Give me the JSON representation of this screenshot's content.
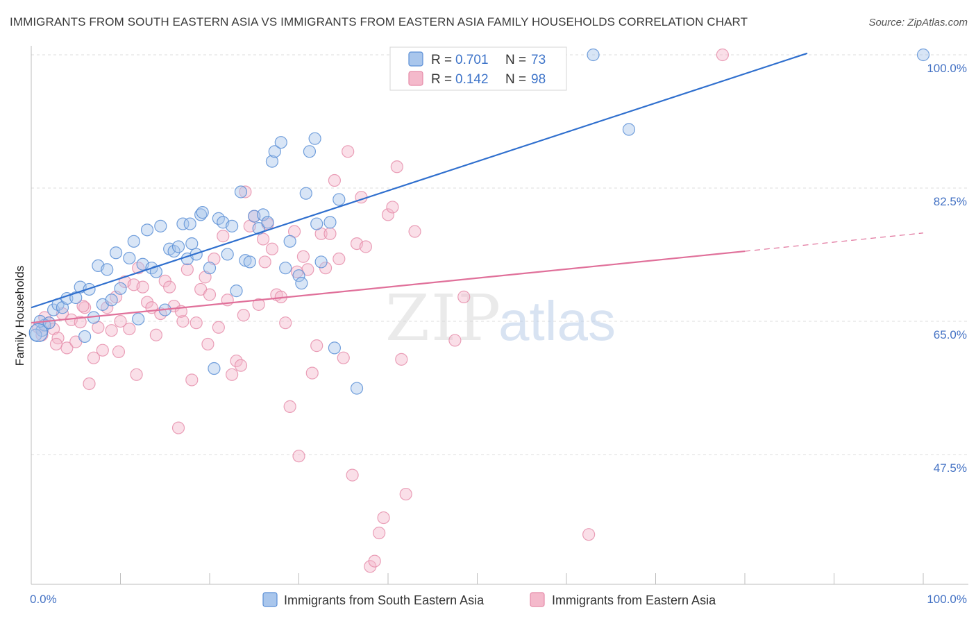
{
  "header": {
    "title": "IMMIGRANTS FROM SOUTH EASTERN ASIA VS IMMIGRANTS FROM EASTERN ASIA FAMILY HOUSEHOLDS CORRELATION CHART",
    "source": "Source: ZipAtlas.com"
  },
  "watermark": {
    "zip": "ZIP",
    "atlas": "atlas"
  },
  "colors": {
    "blue_fill": "#a9c6ec",
    "blue_stroke": "#5b8fd6",
    "blue_line": "#2f6fce",
    "pink_fill": "#f4b9cb",
    "pink_stroke": "#e58aa8",
    "pink_line": "#e0709a",
    "grid": "#dcdcdc",
    "tick_text": "#4472c4"
  },
  "legend": {
    "r_label": "R =",
    "n_label": "N =",
    "items": [
      {
        "r": "0.701",
        "n": "73"
      },
      {
        "r": "0.142",
        "n": "98"
      }
    ]
  },
  "chart_data": {
    "type": "scatter",
    "title": "IMMIGRANTS FROM SOUTH EASTERN ASIA VS IMMIGRANTS FROM EASTERN ASIA FAMILY HOUSEHOLDS CORRELATION CHART",
    "xlabel": "",
    "ylabel": "Family Households",
    "xlim": [
      0,
      100
    ],
    "ylim": [
      33,
      101
    ],
    "x_tick_labels": [
      "0.0%",
      "100.0%"
    ],
    "y_ticks": [
      47.5,
      65.0,
      82.5,
      100.0
    ],
    "y_tick_labels": [
      "47.5%",
      "65.0%",
      "82.5%",
      "100.0%"
    ],
    "grid": true,
    "legend_placement": "top-center",
    "series": [
      {
        "name": "Immigrants from South Eastern Asia",
        "color": "#5b8fd6",
        "trend": {
          "x0": 0,
          "y0": 66.8,
          "x1": 87,
          "y1": 100.2,
          "dashed_to": null
        },
        "points": [
          [
            1.2,
            63.8
          ],
          [
            1.5,
            64.5
          ],
          [
            1.0,
            65.0
          ],
          [
            2.0,
            64.8
          ],
          [
            2.5,
            66.5
          ],
          [
            3.0,
            67.2
          ],
          [
            3.5,
            66.8
          ],
          [
            4.0,
            68.0
          ],
          [
            5.0,
            68.1
          ],
          [
            5.5,
            69.5
          ],
          [
            6.0,
            63.0
          ],
          [
            7.0,
            65.5
          ],
          [
            6.5,
            69.2
          ],
          [
            7.5,
            72.3
          ],
          [
            8.0,
            67.2
          ],
          [
            8.5,
            71.8
          ],
          [
            9.0,
            67.8
          ],
          [
            9.5,
            74.0
          ],
          [
            10.0,
            69.3
          ],
          [
            11.0,
            73.3
          ],
          [
            11.5,
            75.5
          ],
          [
            12.0,
            65.3
          ],
          [
            12.5,
            72.5
          ],
          [
            13.0,
            77.0
          ],
          [
            13.5,
            72.0
          ],
          [
            14.0,
            71.5
          ],
          [
            14.5,
            77.5
          ],
          [
            15.0,
            66.5
          ],
          [
            15.5,
            74.5
          ],
          [
            16.0,
            74.2
          ],
          [
            16.5,
            74.8
          ],
          [
            17.0,
            77.8
          ],
          [
            17.5,
            73.2
          ],
          [
            17.8,
            77.8
          ],
          [
            18.0,
            75.2
          ],
          [
            18.5,
            73.8
          ],
          [
            19.0,
            79.0
          ],
          [
            19.2,
            79.3
          ],
          [
            20.0,
            72.0
          ],
          [
            20.5,
            58.8
          ],
          [
            21.0,
            78.5
          ],
          [
            21.5,
            78.0
          ],
          [
            22.0,
            73.8
          ],
          [
            22.5,
            77.5
          ],
          [
            23.0,
            69.0
          ],
          [
            23.5,
            82.0
          ],
          [
            24.0,
            73.0
          ],
          [
            24.5,
            72.8
          ],
          [
            25.0,
            78.8
          ],
          [
            25.5,
            77.2
          ],
          [
            26.0,
            79.0
          ],
          [
            26.5,
            78.0
          ],
          [
            27.0,
            86.0
          ],
          [
            27.3,
            87.3
          ],
          [
            28.0,
            88.5
          ],
          [
            28.5,
            72.0
          ],
          [
            29.0,
            75.5
          ],
          [
            30.0,
            71.0
          ],
          [
            30.3,
            70.0
          ],
          [
            30.8,
            81.8
          ],
          [
            31.2,
            87.3
          ],
          [
            31.8,
            89.0
          ],
          [
            32.0,
            77.8
          ],
          [
            32.5,
            72.8
          ],
          [
            33.5,
            78.0
          ],
          [
            34.0,
            61.5
          ],
          [
            34.5,
            81.0
          ],
          [
            36.5,
            56.2
          ],
          [
            42.0,
            100.0
          ],
          [
            63.0,
            100.0
          ],
          [
            67.0,
            90.2
          ],
          [
            100.0,
            100.0
          ],
          [
            0.5,
            63.2
          ]
        ]
      },
      {
        "name": "Immigrants from Eastern Asia",
        "color": "#e58aa8",
        "trend": {
          "x0": 0,
          "y0": 64.8,
          "x1": 80,
          "y1": 74.2,
          "dashed_to": [
            100,
            76.6
          ]
        },
        "points": [
          [
            0.8,
            64.2
          ],
          [
            1.2,
            63.2
          ],
          [
            1.5,
            65.5
          ],
          [
            2.0,
            64.8
          ],
          [
            2.5,
            64.0
          ],
          [
            3.0,
            62.8
          ],
          [
            3.5,
            66.0
          ],
          [
            4.0,
            61.5
          ],
          [
            4.5,
            65.2
          ],
          [
            5.0,
            62.3
          ],
          [
            5.5,
            64.9
          ],
          [
            6.0,
            66.8
          ],
          [
            6.5,
            56.8
          ],
          [
            7.0,
            60.2
          ],
          [
            7.5,
            64.2
          ],
          [
            8.0,
            61.2
          ],
          [
            8.5,
            66.8
          ],
          [
            9.0,
            63.8
          ],
          [
            9.5,
            68.2
          ],
          [
            10.0,
            65.0
          ],
          [
            10.5,
            70.2
          ],
          [
            11.0,
            64.0
          ],
          [
            11.5,
            69.8
          ],
          [
            12.0,
            72.0
          ],
          [
            12.5,
            69.5
          ],
          [
            13.0,
            67.5
          ],
          [
            13.5,
            66.8
          ],
          [
            14.0,
            63.2
          ],
          [
            14.5,
            66.0
          ],
          [
            15.0,
            70.3
          ],
          [
            15.5,
            69.5
          ],
          [
            16.0,
            67.0
          ],
          [
            16.5,
            51.0
          ],
          [
            17.0,
            65.0
          ],
          [
            17.5,
            71.8
          ],
          [
            18.0,
            57.3
          ],
          [
            18.5,
            64.8
          ],
          [
            19.0,
            69.2
          ],
          [
            19.5,
            70.8
          ],
          [
            20.0,
            68.5
          ],
          [
            20.5,
            73.2
          ],
          [
            21.0,
            64.2
          ],
          [
            21.5,
            76.2
          ],
          [
            22.0,
            67.8
          ],
          [
            22.5,
            58.0
          ],
          [
            23.0,
            59.8
          ],
          [
            23.5,
            59.2
          ],
          [
            24.0,
            82.0
          ],
          [
            24.5,
            77.5
          ],
          [
            25.0,
            78.8
          ],
          [
            25.5,
            67.2
          ],
          [
            26.0,
            75.8
          ],
          [
            26.5,
            77.8
          ],
          [
            27.0,
            74.5
          ],
          [
            27.5,
            68.5
          ],
          [
            28.0,
            68.2
          ],
          [
            28.5,
            64.8
          ],
          [
            29.0,
            53.8
          ],
          [
            29.5,
            76.8
          ],
          [
            30.0,
            47.3
          ],
          [
            30.5,
            73.5
          ],
          [
            31.0,
            71.8
          ],
          [
            31.5,
            58.2
          ],
          [
            32.0,
            61.8
          ],
          [
            32.5,
            76.5
          ],
          [
            33.0,
            72.0
          ],
          [
            33.5,
            76.5
          ],
          [
            34.0,
            83.5
          ],
          [
            34.5,
            73.2
          ],
          [
            35.0,
            60.2
          ],
          [
            35.5,
            87.3
          ],
          [
            36.0,
            44.8
          ],
          [
            36.5,
            75.2
          ],
          [
            37.0,
            81.3
          ],
          [
            37.5,
            74.8
          ],
          [
            38.0,
            32.8
          ],
          [
            38.5,
            33.5
          ],
          [
            39.0,
            37.2
          ],
          [
            39.5,
            39.2
          ],
          [
            40.0,
            79.0
          ],
          [
            40.5,
            80.0
          ],
          [
            41.0,
            85.3
          ],
          [
            41.5,
            60.0
          ],
          [
            42.0,
            42.3
          ],
          [
            43.0,
            76.8
          ],
          [
            47.5,
            62.5
          ],
          [
            48.5,
            68.2
          ],
          [
            62.5,
            37.0
          ],
          [
            77.5,
            100.0
          ],
          [
            2.8,
            62.0
          ],
          [
            5.8,
            67.0
          ],
          [
            9.8,
            61.0
          ],
          [
            19.8,
            62.0
          ],
          [
            26.2,
            72.8
          ],
          [
            11.8,
            58.0
          ],
          [
            16.8,
            66.3
          ],
          [
            23.8,
            65.8
          ],
          [
            29.8,
            71.5
          ]
        ]
      }
    ]
  },
  "bottom_legend": {
    "items": [
      {
        "label": "Immigrants from South Eastern Asia"
      },
      {
        "label": "Immigrants from Eastern Asia"
      }
    ]
  }
}
